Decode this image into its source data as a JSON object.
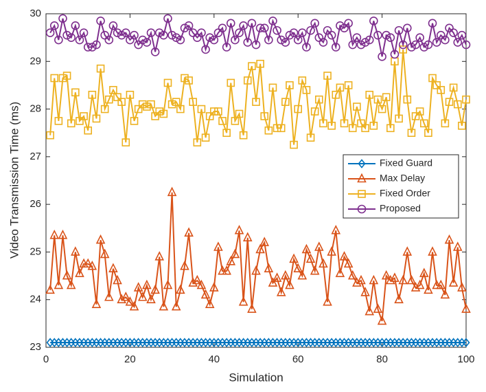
{
  "chart_data": {
    "type": "line",
    "xlabel": "Simulation",
    "ylabel": "Video Transmission Time (ms)",
    "x": [
      1,
      2,
      3,
      4,
      5,
      6,
      7,
      8,
      9,
      10,
      11,
      12,
      13,
      14,
      15,
      16,
      17,
      18,
      19,
      20,
      21,
      22,
      23,
      24,
      25,
      26,
      27,
      28,
      29,
      30,
      31,
      32,
      33,
      34,
      35,
      36,
      37,
      38,
      39,
      40,
      41,
      42,
      43,
      44,
      45,
      46,
      47,
      48,
      49,
      50,
      51,
      52,
      53,
      54,
      55,
      56,
      57,
      58,
      59,
      60,
      61,
      62,
      63,
      64,
      65,
      66,
      67,
      68,
      69,
      70,
      71,
      72,
      73,
      74,
      75,
      76,
      77,
      78,
      79,
      80,
      81,
      82,
      83,
      84,
      85,
      86,
      87,
      88,
      89,
      90,
      91,
      92,
      93,
      94,
      95,
      96,
      97,
      98,
      99,
      100
    ],
    "xlim": [
      0,
      100
    ],
    "xticks": [
      0,
      20,
      40,
      60,
      80,
      100
    ],
    "ylim": [
      23,
      30
    ],
    "yticks": [
      23,
      24,
      25,
      26,
      27,
      28,
      29,
      30
    ],
    "legend": "east",
    "series": [
      {
        "name": "Fixed Guard",
        "color": "#0072BD",
        "marker": "diamond",
        "values": [
          23.1,
          23.1,
          23.1,
          23.1,
          23.1,
          23.1,
          23.1,
          23.1,
          23.1,
          23.1,
          23.1,
          23.1,
          23.1,
          23.1,
          23.1,
          23.1,
          23.1,
          23.1,
          23.1,
          23.1,
          23.1,
          23.1,
          23.1,
          23.1,
          23.1,
          23.1,
          23.1,
          23.1,
          23.1,
          23.1,
          23.1,
          23.1,
          23.1,
          23.1,
          23.1,
          23.1,
          23.1,
          23.1,
          23.1,
          23.1,
          23.1,
          23.1,
          23.1,
          23.1,
          23.1,
          23.1,
          23.1,
          23.1,
          23.1,
          23.1,
          23.1,
          23.1,
          23.1,
          23.1,
          23.1,
          23.1,
          23.1,
          23.1,
          23.1,
          23.1,
          23.1,
          23.1,
          23.1,
          23.1,
          23.1,
          23.1,
          23.1,
          23.1,
          23.1,
          23.1,
          23.1,
          23.1,
          23.1,
          23.1,
          23.1,
          23.1,
          23.1,
          23.1,
          23.1,
          23.1,
          23.1,
          23.1,
          23.1,
          23.1,
          23.1,
          23.1,
          23.1,
          23.1,
          23.1,
          23.1,
          23.1,
          23.1,
          23.1,
          23.1,
          23.1,
          23.1,
          23.1,
          23.1,
          23.1,
          23.1
        ]
      },
      {
        "name": "Max Delay",
        "color": "#D95319",
        "marker": "triangle",
        "values": [
          24.2,
          25.35,
          24.3,
          25.35,
          24.5,
          24.3,
          25.0,
          24.55,
          24.75,
          24.75,
          24.7,
          23.9,
          25.25,
          24.95,
          24.05,
          24.65,
          24.4,
          24.0,
          24.05,
          23.95,
          23.85,
          24.25,
          24.05,
          24.3,
          24.0,
          24.2,
          24.9,
          23.85,
          24.3,
          26.25,
          23.85,
          24.2,
          24.7,
          25.4,
          24.35,
          24.4,
          24.3,
          24.1,
          23.9,
          24.25,
          25.1,
          24.6,
          24.6,
          24.8,
          24.95,
          25.45,
          23.95,
          25.3,
          23.8,
          24.6,
          25.05,
          25.2,
          24.65,
          24.35,
          24.45,
          24.15,
          24.5,
          24.3,
          24.85,
          24.65,
          24.5,
          25.05,
          24.85,
          24.6,
          25.1,
          24.75,
          23.95,
          25.0,
          25.45,
          24.55,
          24.9,
          24.75,
          24.5,
          24.35,
          24.4,
          24.15,
          23.75,
          24.4,
          23.8,
          23.55,
          24.5,
          24.4,
          24.45,
          24.0,
          24.4,
          25.0,
          24.4,
          24.25,
          24.3,
          24.55,
          24.2,
          25.0,
          24.3,
          24.3,
          24.1,
          25.25,
          24.35,
          25.1,
          24.25,
          23.8
        ]
      },
      {
        "name": "Fixed Order",
        "color": "#EDB120",
        "marker": "square",
        "values": [
          27.45,
          28.65,
          27.75,
          28.65,
          28.7,
          27.7,
          28.35,
          27.75,
          27.85,
          27.55,
          28.3,
          27.8,
          28.85,
          28.0,
          28.2,
          28.4,
          28.25,
          28.15,
          27.3,
          28.3,
          27.75,
          28.0,
          28.1,
          28.05,
          28.1,
          27.85,
          27.95,
          27.9,
          28.55,
          28.1,
          28.15,
          28.0,
          28.65,
          28.6,
          28.15,
          27.3,
          28.0,
          27.4,
          27.85,
          27.95,
          27.95,
          27.75,
          27.5,
          28.55,
          27.75,
          27.9,
          27.45,
          28.6,
          28.9,
          28.15,
          28.95,
          27.85,
          27.55,
          28.45,
          27.6,
          27.6,
          28.15,
          28.5,
          27.25,
          28.0,
          28.6,
          28.4,
          27.4,
          27.95,
          28.2,
          27.7,
          28.7,
          27.65,
          28.3,
          28.45,
          27.7,
          28.5,
          27.6,
          28.05,
          27.7,
          27.6,
          28.3,
          27.65,
          28.2,
          28.0,
          28.25,
          27.6,
          29.0,
          27.8,
          29.25,
          28.2,
          27.5,
          27.85,
          27.95,
          27.7,
          27.5,
          28.65,
          28.5,
          28.4,
          27.7,
          28.15,
          28.45,
          28.1,
          27.65,
          28.2
        ]
      },
      {
        "name": "Proposed",
        "color": "#7E2F8E",
        "marker": "circle",
        "values": [
          29.6,
          29.75,
          29.45,
          29.9,
          29.55,
          29.5,
          29.75,
          29.45,
          29.6,
          29.3,
          29.3,
          29.35,
          29.85,
          29.55,
          29.45,
          29.75,
          29.6,
          29.55,
          29.6,
          29.45,
          29.55,
          29.35,
          29.45,
          29.4,
          29.6,
          29.2,
          29.6,
          29.55,
          29.9,
          29.55,
          29.5,
          29.45,
          29.7,
          29.75,
          29.6,
          29.5,
          29.6,
          29.25,
          29.5,
          29.45,
          29.6,
          29.7,
          29.3,
          29.8,
          29.45,
          29.6,
          29.75,
          29.4,
          29.8,
          29.35,
          29.7,
          29.7,
          29.45,
          29.85,
          29.65,
          29.45,
          29.4,
          29.55,
          29.6,
          29.45,
          29.6,
          29.3,
          29.65,
          29.8,
          29.5,
          29.4,
          29.65,
          29.55,
          29.3,
          29.75,
          29.7,
          29.8,
          29.35,
          29.5,
          29.35,
          29.4,
          29.45,
          29.85,
          29.55,
          29.1,
          29.55,
          29.5,
          29.15,
          29.65,
          29.35,
          29.7,
          29.3,
          29.35,
          29.5,
          29.3,
          29.35,
          29.8,
          29.4,
          29.55,
          29.45,
          29.7,
          29.6,
          29.4,
          29.55,
          29.35
        ]
      }
    ]
  }
}
